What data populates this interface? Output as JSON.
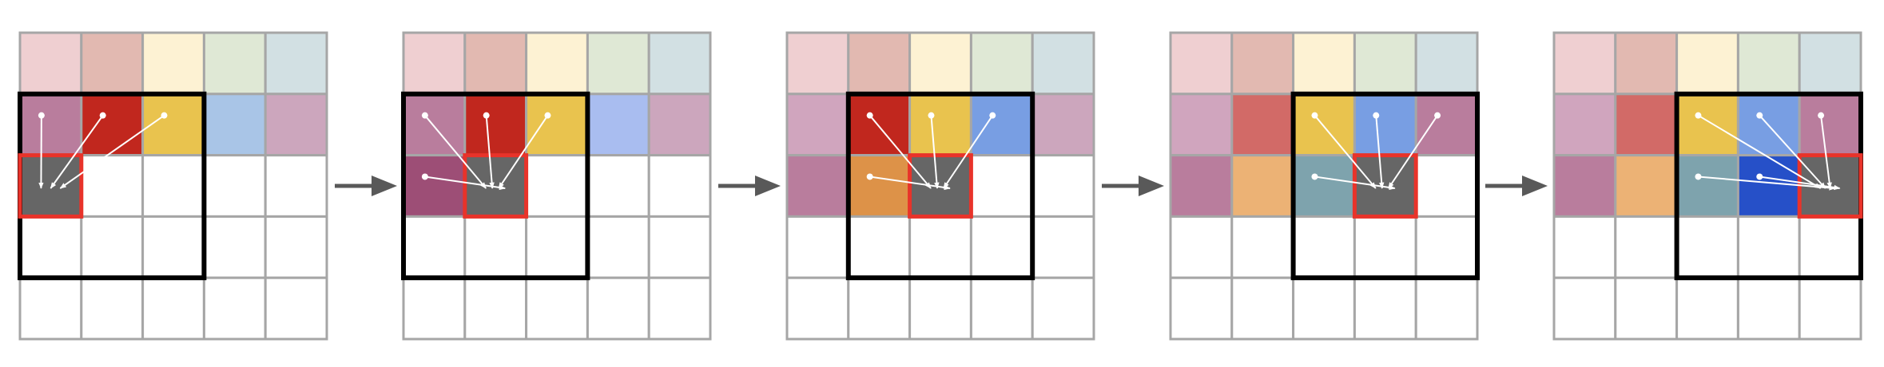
{
  "colors": {
    "grid_line": "#a6a6a6",
    "window_border": "#000000",
    "current_pixel_border": "#e8332a",
    "current_pixel_fill": "#666666",
    "arrow": "#ffffff",
    "step_arrow": "#595959",
    "empty": "#ffffff"
  },
  "panels": [
    {
      "name": "step-1",
      "cells": [
        [
          "#efcfd1",
          "#e2b9b1",
          "#fdf2d3",
          "#dfe8d5",
          "#d2e0e3"
        ],
        [
          "#b97d9d",
          "#c1271e",
          "#e9c34e",
          "#a9c5e7",
          "#cca6bd"
        ],
        [
          "cur",
          "",
          "",
          "",
          ""
        ],
        [
          "",
          "",
          "",
          "",
          ""
        ],
        [
          "",
          "",
          "",
          "",
          ""
        ]
      ],
      "window": {
        "row": 1,
        "col": 0,
        "rows": 3,
        "cols": 3
      },
      "current": {
        "row": 2,
        "col": 0
      },
      "arrows_from": [
        [
          1,
          0
        ],
        [
          1,
          1
        ],
        [
          1,
          2
        ]
      ]
    },
    {
      "name": "step-2",
      "cells": [
        [
          "#efcfd1",
          "#e2b9b1",
          "#fdf2d3",
          "#dfe8d5",
          "#d2e0e3"
        ],
        [
          "#b97d9d",
          "#c1271e",
          "#e9c34e",
          "#a9bdf0",
          "#cca6bd"
        ],
        [
          "#9d4e76",
          "cur",
          "",
          "",
          ""
        ],
        [
          "",
          "",
          "",
          "",
          ""
        ],
        [
          "",
          "",
          "",
          "",
          ""
        ]
      ],
      "window": {
        "row": 1,
        "col": 0,
        "rows": 3,
        "cols": 3
      },
      "current": {
        "row": 2,
        "col": 1
      },
      "arrows_from": [
        [
          1,
          0
        ],
        [
          1,
          1
        ],
        [
          1,
          2
        ],
        [
          2,
          0
        ]
      ]
    },
    {
      "name": "step-3",
      "cells": [
        [
          "#efcfd1",
          "#e2b9b1",
          "#fdf2d3",
          "#dfe8d5",
          "#d2e0e3"
        ],
        [
          "#d0a5be",
          "#c1271e",
          "#e9c34e",
          "#789ee3",
          "#cca6bd"
        ],
        [
          "#b97d9d",
          "#dd9248",
          "cur",
          "",
          ""
        ],
        [
          "",
          "",
          "",
          "",
          ""
        ],
        [
          "",
          "",
          "",
          "",
          ""
        ]
      ],
      "window": {
        "row": 1,
        "col": 1,
        "rows": 3,
        "cols": 3
      },
      "current": {
        "row": 2,
        "col": 2
      },
      "arrows_from": [
        [
          1,
          1
        ],
        [
          1,
          2
        ],
        [
          1,
          3
        ],
        [
          2,
          1
        ]
      ]
    },
    {
      "name": "step-4",
      "cells": [
        [
          "#efcfd1",
          "#e2b9b1",
          "#fdf2d3",
          "#dfe8d5",
          "#d2e0e3"
        ],
        [
          "#d0a5be",
          "#d26a67",
          "#e9c34e",
          "#789ee3",
          "#b97d9d"
        ],
        [
          "#b97d9d",
          "#ecb275",
          "#7ea3ad",
          "cur",
          ""
        ],
        [
          "",
          "",
          "",
          "",
          ""
        ],
        [
          "",
          "",
          "",
          "",
          ""
        ]
      ],
      "window": {
        "row": 1,
        "col": 2,
        "rows": 3,
        "cols": 3
      },
      "current": {
        "row": 2,
        "col": 3
      },
      "arrows_from": [
        [
          1,
          2
        ],
        [
          1,
          3
        ],
        [
          1,
          4
        ],
        [
          2,
          2
        ]
      ]
    },
    {
      "name": "step-5",
      "cells": [
        [
          "#efcfd1",
          "#e2b9b1",
          "#fdf2d3",
          "#dfe8d5",
          "#d2e0e3"
        ],
        [
          "#d0a5be",
          "#d26a67",
          "#e9c34e",
          "#789ee3",
          "#b97d9d"
        ],
        [
          "#b97d9d",
          "#ecb275",
          "#7ea3ad",
          "#2650c8",
          "cur"
        ],
        [
          "",
          "",
          "",
          "",
          ""
        ],
        [
          "",
          "",
          "",
          "",
          ""
        ]
      ],
      "window": {
        "row": 1,
        "col": 2,
        "rows": 3,
        "cols": 3
      },
      "current": {
        "row": 2,
        "col": 4
      },
      "arrows_from": [
        [
          1,
          2
        ],
        [
          1,
          3
        ],
        [
          1,
          4
        ],
        [
          2,
          2
        ],
        [
          2,
          3
        ]
      ]
    }
  ]
}
